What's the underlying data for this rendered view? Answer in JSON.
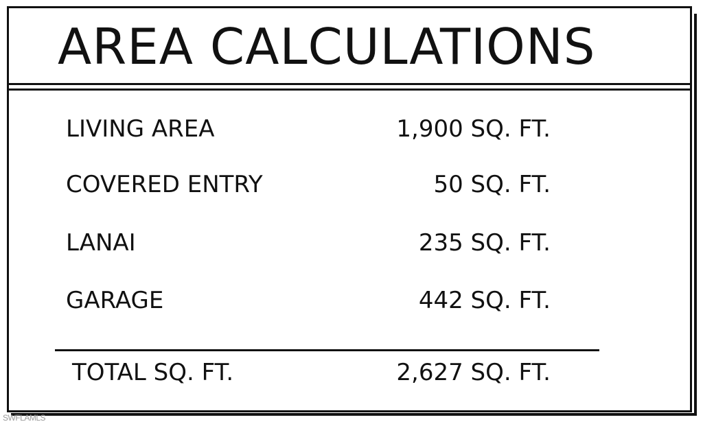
{
  "title": "AREA CALCULATIONS",
  "rows": [
    {
      "label": "LIVING AREA",
      "value": "1,900 SQ. FT."
    },
    {
      "label": "COVERED ENTRY",
      "value": "50 SQ. FT."
    },
    {
      "label": "LANAI",
      "value": "235 SQ. FT."
    },
    {
      "label": "GARAGE",
      "value": "442 SQ. FT."
    }
  ],
  "total": {
    "label": "TOTAL SQ. FT.",
    "value": "2,627 SQ. FT."
  },
  "watermark": "SWFLAMLS"
}
